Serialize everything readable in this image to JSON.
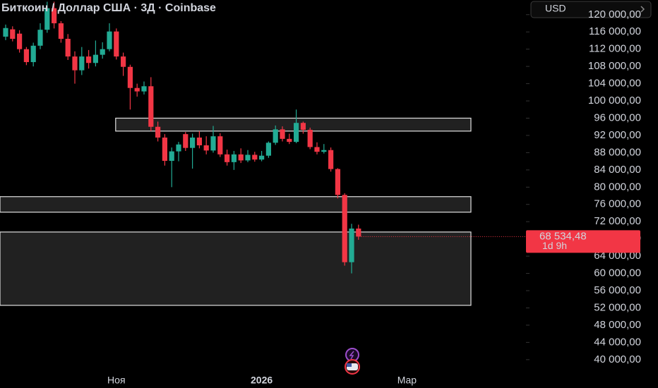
{
  "chart_data": {
    "type": "candlestick",
    "title": "Биткоин / Доллар США · 3Д · Coinbase",
    "currency": "USD",
    "categories": [
      null,
      null,
      null,
      null,
      null,
      null,
      null,
      null,
      null,
      null,
      null,
      null,
      null,
      null,
      null,
      null,
      "Ноя",
      null,
      null,
      null,
      null,
      null,
      null,
      null,
      null,
      null,
      null,
      null,
      null,
      null,
      null,
      null,
      null,
      null,
      null,
      null,
      null,
      "2026",
      null,
      null,
      null,
      null,
      null,
      null,
      null,
      null,
      null,
      null,
      null,
      null,
      null,
      null,
      null,
      null,
      null,
      null,
      null,
      null,
      "Мар"
    ],
    "open": [
      114900,
      116600,
      115600,
      112000,
      109000,
      112800,
      116500,
      121500,
      118000,
      114400,
      110300,
      107100,
      110300,
      108800,
      110700,
      112000,
      116100,
      110300,
      107900,
      103000,
      102200,
      103400,
      94000,
      91500,
      86100,
      88300,
      92300,
      89100,
      91500,
      89700,
      88500,
      91800,
      87600,
      85800,
      87600,
      86200,
      87500,
      86400,
      87300,
      90300,
      93400,
      91200,
      90500,
      94900,
      93300,
      89300,
      88200,
      88600,
      84200,
      78200,
      62600,
      70400,
      null,
      null,
      null,
      null,
      null,
      null,
      null
    ],
    "high": [
      117700,
      117300,
      116400,
      112500,
      113500,
      118000,
      123000,
      123000,
      118500,
      115500,
      111500,
      112500,
      111800,
      114000,
      113600,
      118000,
      116800,
      111200,
      108400,
      104000,
      104500,
      105500,
      95200,
      92300,
      89200,
      90500,
      92800,
      92400,
      93000,
      91800,
      94200,
      92500,
      88700,
      88400,
      89000,
      88600,
      88200,
      88400,
      90600,
      94300,
      94100,
      92400,
      98000,
      95200,
      93800,
      90400,
      90000,
      89200,
      84400,
      78600,
      71500,
      71300,
      null,
      null,
      null,
      null,
      null,
      null,
      null
    ],
    "low": [
      114100,
      113800,
      111200,
      108300,
      108000,
      112000,
      115800,
      116800,
      113500,
      109500,
      104000,
      106000,
      107500,
      108000,
      109800,
      111500,
      109600,
      105800,
      98000,
      101000,
      101500,
      93000,
      90600,
      85000,
      80000,
      86000,
      88400,
      84300,
      89000,
      87600,
      88000,
      87000,
      85000,
      84000,
      85600,
      85800,
      85900,
      86000,
      86800,
      89800,
      90600,
      90000,
      90200,
      92400,
      88800,
      87600,
      87800,
      83600,
      77400,
      61800,
      60000,
      67800,
      null,
      null,
      null,
      null,
      null,
      null,
      null
    ],
    "close": [
      116900,
      114400,
      112000,
      109000,
      112800,
      116500,
      121500,
      118000,
      114400,
      110300,
      107100,
      110300,
      108800,
      110700,
      112000,
      116100,
      110300,
      107900,
      103000,
      102200,
      103400,
      94000,
      91500,
      86100,
      88300,
      89900,
      89100,
      91500,
      89700,
      88500,
      91800,
      87600,
      85800,
      87600,
      86200,
      87500,
      86400,
      87300,
      90300,
      93400,
      91200,
      90500,
      94900,
      93300,
      89300,
      88200,
      88600,
      84200,
      78200,
      62600,
      70400,
      68534.48,
      null,
      null,
      null,
      null,
      null,
      null,
      null
    ],
    "up_color": "#22ab94",
    "down_color": "#f23645",
    "last_price_label": "68 534,48",
    "countdown": "1d 9h",
    "zones": [
      {
        "top": 96000,
        "bottom": 93000
      },
      {
        "top": 77800,
        "bottom": 74200
      },
      {
        "top": 69600,
        "bottom": 52600
      }
    ],
    "ylim": [
      36700,
      123400
    ],
    "yticks": [
      {
        "value": 40000,
        "label": "40 000,00"
      },
      {
        "value": 44000,
        "label": "44 000,00"
      },
      {
        "value": 48000,
        "label": "48 000,00"
      },
      {
        "value": 52000,
        "label": "52 000,00"
      },
      {
        "value": 56000,
        "label": "56 000,00"
      },
      {
        "value": 60000,
        "label": "60 000,00"
      },
      {
        "value": 64000,
        "label": "64 000,00"
      },
      {
        "value": 68000,
        "label": "68 000,00"
      },
      {
        "value": 72000,
        "label": "72 000,00"
      },
      {
        "value": 76000,
        "label": "76 000,00"
      },
      {
        "value": 80000,
        "label": "80 000,00"
      },
      {
        "value": 84000,
        "label": "84 000,00"
      },
      {
        "value": 88000,
        "label": "88 000,00"
      },
      {
        "value": 92000,
        "label": "92 000,00"
      },
      {
        "value": 96000,
        "label": "96 000,00"
      },
      {
        "value": 100000,
        "label": "100 000,00"
      },
      {
        "value": 104000,
        "label": "104 000,00"
      },
      {
        "value": 108000,
        "label": "108 000,00"
      },
      {
        "value": 112000,
        "label": "112 000,00"
      },
      {
        "value": 116000,
        "label": "116 000,00"
      },
      {
        "value": 120000,
        "label": "120 000,00"
      }
    ]
  }
}
